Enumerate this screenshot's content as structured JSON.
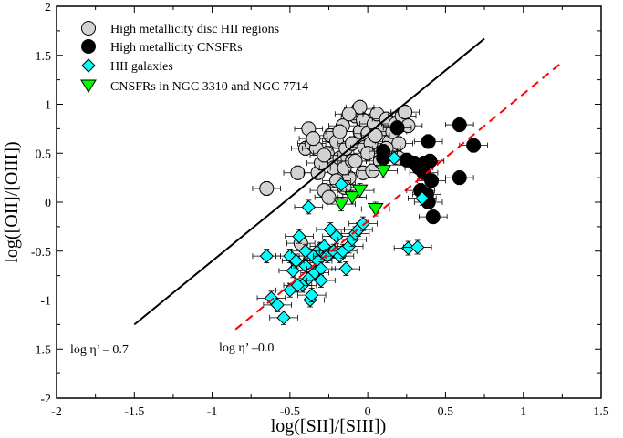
{
  "chart_data": {
    "type": "scatter",
    "xlabel": "log([SII]/[SIII])",
    "ylabel": "log([OII]/[OIII])",
    "xlim": [
      -2,
      1.5
    ],
    "ylim": [
      -2,
      2
    ],
    "xticks": [
      -2,
      -1.5,
      -1,
      -0.5,
      0,
      0.5,
      1,
      1.5
    ],
    "yticks": [
      -2,
      -1.5,
      -1,
      -0.5,
      0,
      0.5,
      1,
      1.5,
      2
    ],
    "xtick_labels": [
      "-2",
      "-1.5",
      "-1",
      "-0.5",
      "0",
      "0.5",
      "1",
      "1.5"
    ],
    "ytick_labels": [
      "-2",
      "-1.5",
      "-1",
      "-0.5",
      "0",
      "0.5",
      "1",
      "1.5",
      "2"
    ],
    "legend_position": "top-left",
    "series": [
      {
        "name": "High metallicity disc HII regions",
        "marker": "circle",
        "color": "#d3d3d3",
        "points": [
          [
            -0.65,
            0.14
          ],
          [
            -0.45,
            0.3
          ],
          [
            -0.4,
            0.55
          ],
          [
            -0.38,
            0.75
          ],
          [
            -0.36,
            0.6
          ],
          [
            -0.33,
            0.55
          ],
          [
            -0.32,
            0.3
          ],
          [
            -0.3,
            0.4
          ],
          [
            -0.28,
            0.12
          ],
          [
            -0.26,
            0.5
          ],
          [
            -0.24,
            0.68
          ],
          [
            -0.22,
            0.35
          ],
          [
            -0.2,
            0.62
          ],
          [
            -0.18,
            0.45
          ],
          [
            -0.16,
            0.78
          ],
          [
            -0.14,
            0.55
          ],
          [
            -0.12,
            0.25
          ],
          [
            -0.1,
            0.6
          ],
          [
            -0.08,
            0.88
          ],
          [
            -0.06,
            0.95
          ],
          [
            -0.05,
            0.72
          ],
          [
            -0.03,
            0.84
          ],
          [
            -0.02,
            0.56
          ],
          [
            0.0,
            0.7
          ],
          [
            0.02,
            0.6
          ],
          [
            0.04,
            0.8
          ],
          [
            0.06,
            0.9
          ],
          [
            0.08,
            0.5
          ],
          [
            0.1,
            0.75
          ],
          [
            0.12,
            0.85
          ],
          [
            0.14,
            0.62
          ],
          [
            0.16,
            0.72
          ],
          [
            0.18,
            0.8
          ],
          [
            0.2,
            0.6
          ],
          [
            0.22,
            0.88
          ],
          [
            0.24,
            0.92
          ],
          [
            0.26,
            0.78
          ],
          [
            -0.2,
            0.22
          ],
          [
            -0.15,
            0.35
          ],
          [
            -0.1,
            0.42
          ],
          [
            -0.03,
            0.3
          ],
          [
            0.03,
            0.32
          ],
          [
            0.08,
            0.42
          ],
          [
            -0.35,
            0.65
          ],
          [
            -0.25,
            0.05
          ],
          [
            -0.43,
            -0.42
          ],
          [
            -0.15,
            0.15
          ],
          [
            -0.05,
            0.97
          ],
          [
            0.0,
            0.5
          ],
          [
            0.12,
            0.55
          ],
          [
            -0.28,
            0.48
          ],
          [
            -0.08,
            0.42
          ],
          [
            0.05,
            0.68
          ],
          [
            0.2,
            0.45
          ],
          [
            -0.18,
            0.72
          ],
          [
            -0.12,
            0.9
          ]
        ]
      },
      {
        "name": "High metallicity CNSFRs",
        "marker": "circle",
        "color": "#000000",
        "points": [
          [
            0.1,
            0.52
          ],
          [
            0.1,
            0.45
          ],
          [
            0.19,
            0.76
          ],
          [
            0.25,
            0.43
          ],
          [
            0.3,
            0.4
          ],
          [
            0.33,
            0.35
          ],
          [
            0.34,
            0.12
          ],
          [
            0.36,
            0.3
          ],
          [
            0.38,
            0.08
          ],
          [
            0.39,
            0.62
          ],
          [
            0.4,
            0.42
          ],
          [
            0.41,
            0.22
          ],
          [
            0.42,
            -0.15
          ],
          [
            0.39,
            0.0
          ],
          [
            0.59,
            0.79
          ],
          [
            0.59,
            0.25
          ],
          [
            0.68,
            0.58
          ],
          [
            0.36,
            0.4
          ]
        ]
      },
      {
        "name": "HII galaxies",
        "marker": "diamond",
        "color": "#00ffff",
        "points": [
          [
            -0.65,
            -0.55
          ],
          [
            -0.62,
            -0.98
          ],
          [
            -0.58,
            -1.05
          ],
          [
            -0.54,
            -1.18
          ],
          [
            -0.5,
            -0.55
          ],
          [
            -0.48,
            -0.7
          ],
          [
            -0.46,
            -0.6
          ],
          [
            -0.44,
            -0.35
          ],
          [
            -0.42,
            -0.85
          ],
          [
            -0.4,
            -0.65
          ],
          [
            -0.38,
            -0.78
          ],
          [
            -0.37,
            -1.0
          ],
          [
            -0.36,
            -0.95
          ],
          [
            -0.35,
            -0.55
          ],
          [
            -0.34,
            -0.72
          ],
          [
            -0.32,
            -0.6
          ],
          [
            -0.31,
            -0.48
          ],
          [
            -0.3,
            -0.68
          ],
          [
            -0.28,
            -0.45
          ],
          [
            -0.26,
            -0.55
          ],
          [
            -0.24,
            -0.28
          ],
          [
            -0.22,
            -0.5
          ],
          [
            -0.2,
            -0.35
          ],
          [
            -0.18,
            -0.55
          ],
          [
            -0.16,
            -0.5
          ],
          [
            -0.14,
            -0.68
          ],
          [
            -0.12,
            -0.45
          ],
          [
            -0.1,
            -0.38
          ],
          [
            -0.08,
            -0.32
          ],
          [
            -0.06,
            -0.28
          ],
          [
            -0.03,
            -0.22
          ],
          [
            0.17,
            0.45
          ],
          [
            0.26,
            -0.47
          ],
          [
            0.32,
            -0.46
          ],
          [
            0.35,
            0.04
          ],
          [
            -0.17,
            0.18
          ],
          [
            -0.38,
            -0.05
          ],
          [
            -0.45,
            -0.85
          ],
          [
            -0.5,
            -0.9
          ],
          [
            -0.4,
            -0.5
          ],
          [
            -0.3,
            -0.8
          ]
        ]
      },
      {
        "name": "CNSFRs in NGC 3310 and NGC 7714",
        "marker": "triangle-down",
        "color": "#00ff00",
        "points": [
          [
            -0.17,
            -0.02
          ],
          [
            -0.1,
            0.05
          ],
          [
            -0.05,
            0.12
          ],
          [
            0.05,
            -0.07
          ],
          [
            0.1,
            0.32
          ]
        ]
      }
    ],
    "lines": [
      {
        "label": "log η’ – 0.7",
        "x": [
          -1.5,
          0.75
        ],
        "y": [
          -1.25,
          1.67
        ],
        "style": "solid",
        "color": "#000000"
      },
      {
        "label": "log η’ –0.0",
        "x": [
          -0.85,
          1.25
        ],
        "y": [
          -1.3,
          1.43
        ],
        "style": "dashed",
        "color": "#ff0000"
      }
    ]
  }
}
